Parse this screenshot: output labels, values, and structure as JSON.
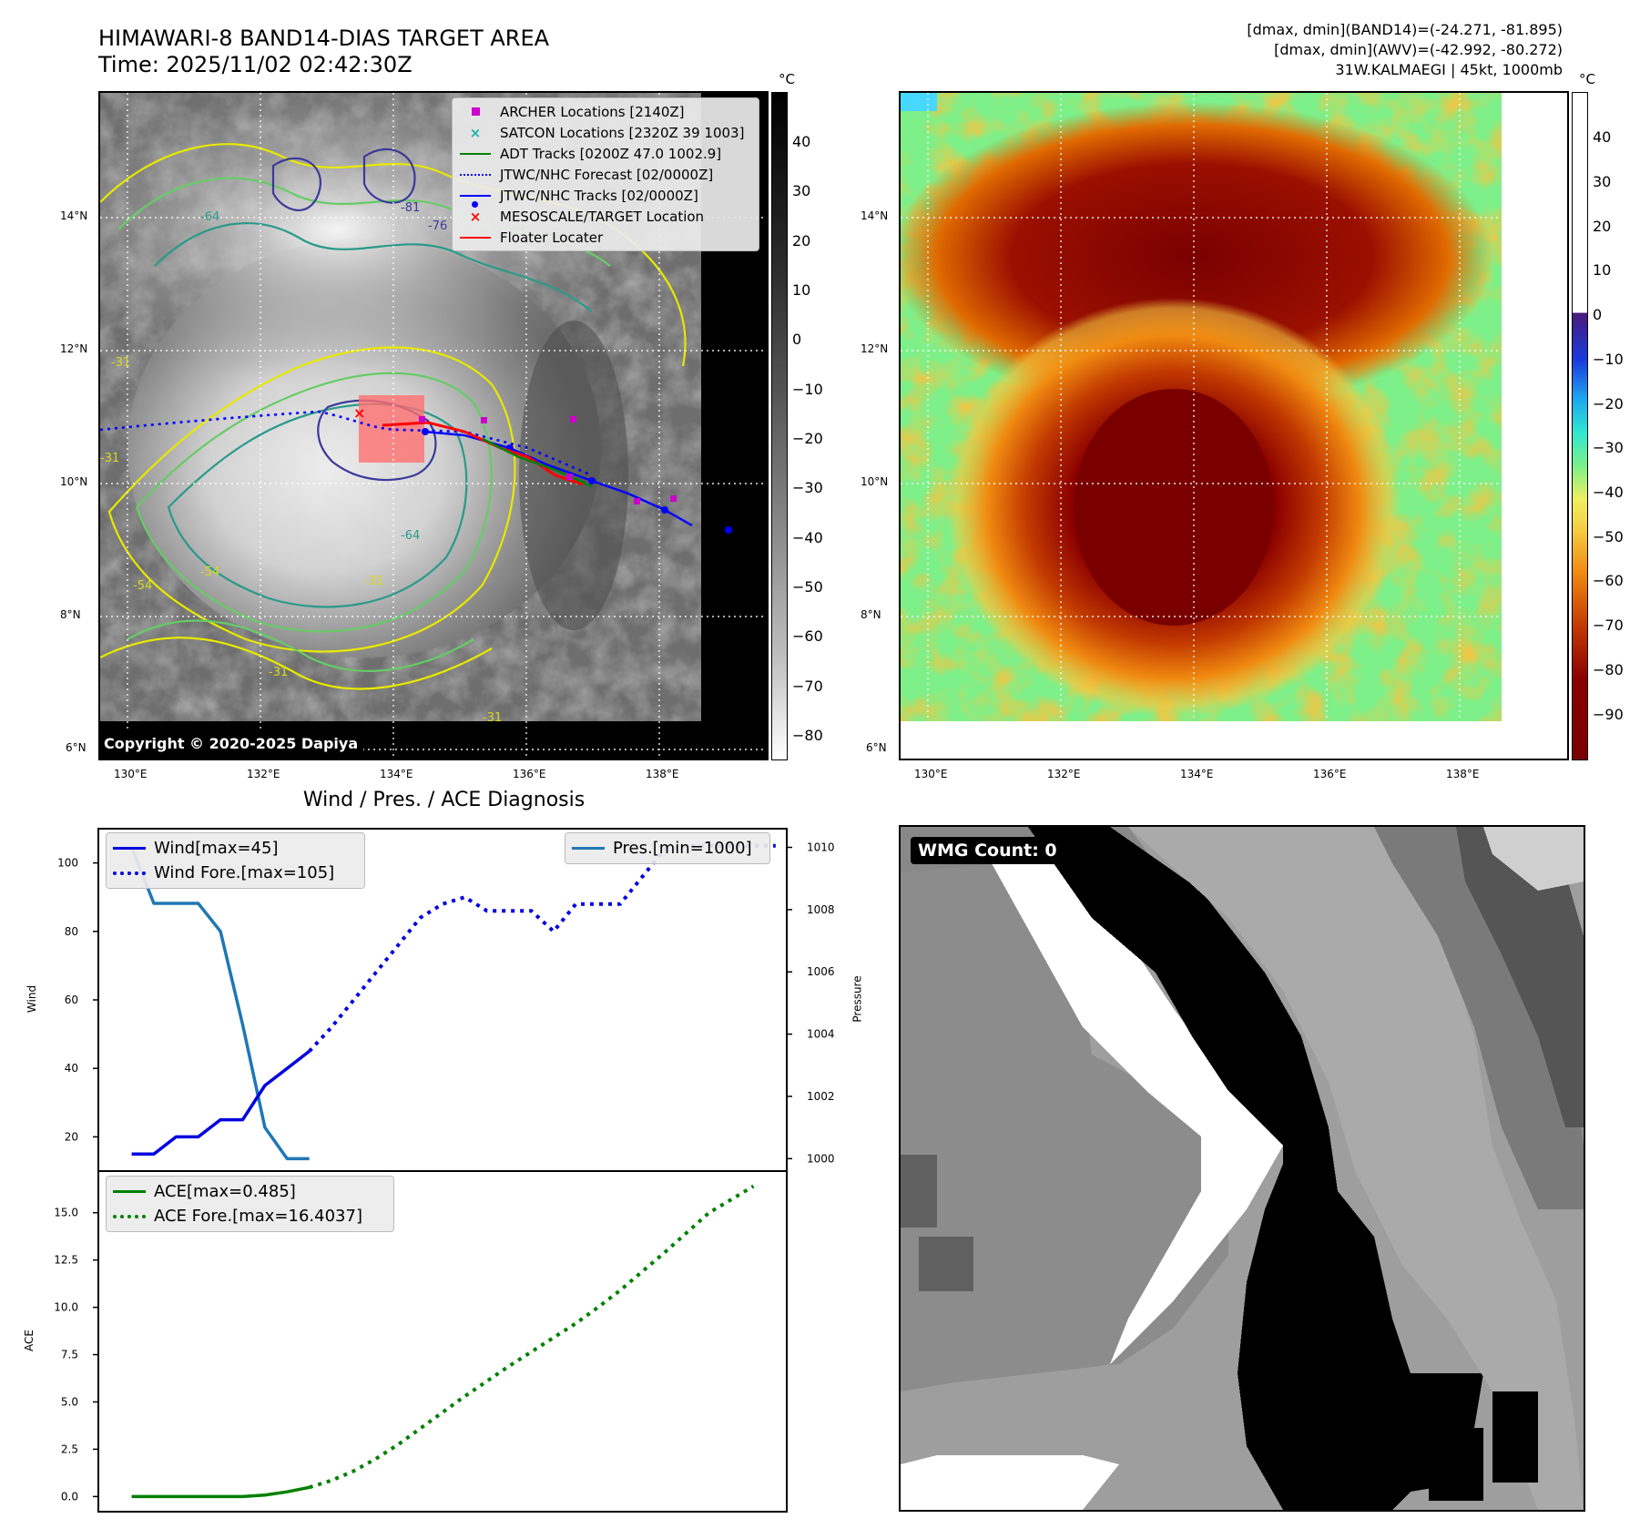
{
  "header": {
    "title_line1": "HIMAWARI-8 BAND14-DIAS TARGET AREA",
    "title_line2": "Time: 2025/11/02 02:42:30Z",
    "stats_line1": "[dmax, dmin](BAND14)=(-24.271, -81.895)",
    "stats_line2": "[dmax, dmin](AWV)=(-42.992, -80.272)",
    "stats_line3": "31W.KALMAEGI | 45kt, 1000mb"
  },
  "maps": {
    "lat_labels": [
      "14°N",
      "12°N",
      "10°N",
      "8°N",
      "6°N"
    ],
    "lon_labels": [
      "130°E",
      "132°E",
      "134°E",
      "136°E",
      "138°E"
    ],
    "unit": "°C",
    "ir_colorbar_ticks": [
      "40",
      "30",
      "20",
      "10",
      "0",
      "−10",
      "−20",
      "−30",
      "−40",
      "−50",
      "−60",
      "−70",
      "−80"
    ],
    "color_colorbar_ticks": [
      "40",
      "30",
      "20",
      "10",
      "0",
      "−10",
      "−20",
      "−30",
      "−40",
      "−50",
      "−60",
      "−70",
      "−80",
      "−90"
    ],
    "contour_labels": [
      "-31",
      "-54",
      "-64",
      "-81",
      "-76",
      "-31",
      "-54",
      "-64",
      "-31",
      "-31",
      "-31"
    ],
    "legend": [
      {
        "label": "ARCHER Locations [2140Z]",
        "symbol": "square",
        "color": "#cc00cc"
      },
      {
        "label": "SATCON Locations [2320Z 39 1003]",
        "symbol": "x",
        "color": "#20b2aa"
      },
      {
        "label": "ADT Tracks [0200Z 47.0 1002.9]",
        "symbol": "line",
        "color": "#008000"
      },
      {
        "label": "JTWC/NHC Forecast [02/0000Z]",
        "symbol": "dotted",
        "color": "#0000ff"
      },
      {
        "label": "JTWC/NHC Tracks [02/0000Z]",
        "symbol": "line-dot",
        "color": "#0000ff"
      },
      {
        "label": "MESOSCALE/TARGET Location",
        "symbol": "x",
        "color": "#ff0000"
      },
      {
        "label": "Floater Locater",
        "symbol": "line",
        "color": "#ff0000"
      }
    ],
    "copyright": "Copyright © 2020-2025 Dapiya"
  },
  "chart_data": [
    {
      "type": "line",
      "title": "Wind / Pres. / ACE Diagnosis",
      "ylabel": "Wind",
      "ylim": [
        10,
        110
      ],
      "yticks": [
        20,
        40,
        60,
        80,
        100
      ],
      "x": [
        0,
        1,
        2,
        3,
        4,
        5,
        6,
        7,
        8,
        9,
        10,
        11,
        12,
        13,
        14,
        15,
        16,
        17,
        18,
        19,
        20,
        21,
        22,
        23,
        24,
        25,
        26,
        27,
        28,
        29
      ],
      "series": [
        {
          "name": "Wind[max=45]",
          "x": [
            0,
            1,
            2,
            3,
            4,
            5,
            6,
            7,
            8
          ],
          "values": [
            15,
            15,
            20,
            20,
            25,
            25,
            35,
            40,
            45
          ],
          "color": "#0000e0",
          "style": "solid"
        },
        {
          "name": "Wind Fore.[max=105]",
          "x": [
            8,
            9,
            10,
            11,
            12,
            13,
            14,
            15,
            16,
            17,
            18,
            19,
            20,
            21,
            22,
            23,
            24,
            25,
            26,
            27,
            28,
            29
          ],
          "values": [
            45,
            52,
            60,
            68,
            76,
            84,
            88,
            90,
            86,
            86,
            86,
            80,
            88,
            88,
            88,
            96,
            104,
            105,
            105,
            105,
            105,
            105
          ],
          "color": "#0000e0",
          "style": "dotted"
        }
      ],
      "right_axis": {
        "ylabel": "Pressure",
        "ylim": [
          999.6,
          1010.6
        ],
        "yticks": [
          1000,
          1002,
          1004,
          1006,
          1008,
          1010
        ],
        "series": [
          {
            "name": "Pres.[min=1000]",
            "x": [
              0,
              1,
              2,
              3,
              4,
              5,
              6,
              7,
              8
            ],
            "values": [
              1010,
              1008.2,
              1008.2,
              1008.2,
              1007.3,
              1004.3,
              1001.0,
              1000.0,
              1000.0
            ],
            "color": "#1f77b4",
            "style": "solid"
          }
        ]
      }
    },
    {
      "type": "line",
      "ylabel": "ACE",
      "ylim": [
        -0.8,
        17.2
      ],
      "yticks": [
        0.0,
        2.5,
        5.0,
        7.5,
        10.0,
        12.5,
        15.0
      ],
      "yticklabels": [
        "0.0",
        "2.5",
        "5.0",
        "7.5",
        "10.0",
        "12.5",
        "15.0"
      ],
      "series": [
        {
          "name": "ACE[max=0.485]",
          "x": [
            0,
            1,
            2,
            3,
            4,
            5,
            6,
            7,
            8
          ],
          "values": [
            0,
            0,
            0,
            0,
            0,
            0,
            0.08,
            0.25,
            0.485
          ],
          "color": "#008000",
          "style": "solid"
        },
        {
          "name": "ACE Fore.[max=16.4037]",
          "x": [
            8,
            9,
            10,
            11,
            12,
            13,
            14,
            15,
            16,
            17,
            18,
            19,
            20,
            21,
            22,
            23,
            24,
            25,
            26,
            27,
            28
          ],
          "values": [
            0.485,
            0.85,
            1.35,
            2.0,
            2.75,
            3.6,
            4.45,
            5.3,
            6.1,
            6.9,
            7.65,
            8.4,
            9.15,
            10.0,
            10.9,
            11.9,
            12.9,
            13.95,
            15.0,
            15.7,
            16.4037
          ],
          "color": "#008000",
          "style": "dotted"
        }
      ]
    }
  ],
  "wmg": {
    "label": "WMG Count: 0"
  }
}
